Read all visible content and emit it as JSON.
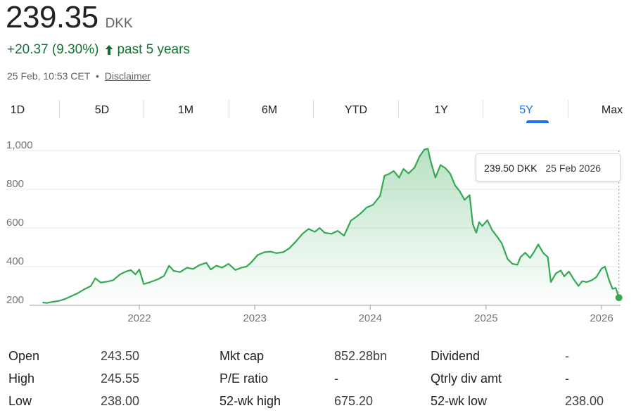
{
  "quote": {
    "price": "239.35",
    "currency": "DKK",
    "change": "+20.37 (9.30%)",
    "change_period": "past 5 years",
    "timestamp": "25 Feb, 10:53 CET",
    "separator": "•",
    "disclaimer": "Disclaimer",
    "change_color": "#137333",
    "line_color": "#34a853"
  },
  "tabs": [
    {
      "label": "1D",
      "active": false
    },
    {
      "label": "5D",
      "active": false
    },
    {
      "label": "1M",
      "active": false
    },
    {
      "label": "6M",
      "active": false
    },
    {
      "label": "YTD",
      "active": false
    },
    {
      "label": "1Y",
      "active": false
    },
    {
      "label": "5Y",
      "active": true
    },
    {
      "label": "Max",
      "active": false
    }
  ],
  "tooltip": {
    "price": "239.50 DKK",
    "date": "25 Feb 2026"
  },
  "chart_data": {
    "type": "area",
    "x_ticks": [
      "2022",
      "2023",
      "2024",
      "2025",
      "2026"
    ],
    "y_ticks": [
      "1,000",
      "800",
      "600",
      "400",
      "200"
    ],
    "ylim": [
      200,
      1000
    ],
    "grid": true,
    "series": [
      {
        "values": [
          [
            "2021-03-01",
            215
          ],
          [
            "2021-03-15",
            212
          ],
          [
            "2021-04-01",
            218
          ],
          [
            "2021-04-20",
            222
          ],
          [
            "2021-05-10",
            232
          ],
          [
            "2021-06-01",
            248
          ],
          [
            "2021-06-20",
            262
          ],
          [
            "2021-07-10",
            282
          ],
          [
            "2021-08-01",
            300
          ],
          [
            "2021-08-15",
            340
          ],
          [
            "2021-09-01",
            318
          ],
          [
            "2021-09-20",
            322
          ],
          [
            "2021-10-10",
            330
          ],
          [
            "2021-11-01",
            360
          ],
          [
            "2021-11-20",
            375
          ],
          [
            "2021-12-05",
            382
          ],
          [
            "2021-12-20",
            360
          ],
          [
            "2022-01-01",
            385
          ],
          [
            "2022-01-15",
            310
          ],
          [
            "2022-02-01",
            318
          ],
          [
            "2022-03-01",
            335
          ],
          [
            "2022-03-20",
            352
          ],
          [
            "2022-04-05",
            405
          ],
          [
            "2022-04-20",
            378
          ],
          [
            "2022-05-10",
            372
          ],
          [
            "2022-06-01",
            395
          ],
          [
            "2022-06-20",
            388
          ],
          [
            "2022-07-10",
            408
          ],
          [
            "2022-08-01",
            420
          ],
          [
            "2022-08-15",
            385
          ],
          [
            "2022-09-01",
            405
          ],
          [
            "2022-09-20",
            395
          ],
          [
            "2022-10-10",
            415
          ],
          [
            "2022-11-01",
            382
          ],
          [
            "2022-11-20",
            395
          ],
          [
            "2022-12-05",
            400
          ],
          [
            "2022-12-20",
            420
          ],
          [
            "2023-01-10",
            460
          ],
          [
            "2023-02-01",
            475
          ],
          [
            "2023-02-20",
            478
          ],
          [
            "2023-03-10",
            470
          ],
          [
            "2023-04-01",
            475
          ],
          [
            "2023-04-20",
            495
          ],
          [
            "2023-05-10",
            528
          ],
          [
            "2023-06-01",
            570
          ],
          [
            "2023-06-20",
            595
          ],
          [
            "2023-07-10",
            580
          ],
          [
            "2023-07-25",
            600
          ],
          [
            "2023-08-10",
            575
          ],
          [
            "2023-09-01",
            570
          ],
          [
            "2023-09-20",
            585
          ],
          [
            "2023-10-10",
            560
          ],
          [
            "2023-11-01",
            638
          ],
          [
            "2023-11-20",
            660
          ],
          [
            "2023-12-05",
            680
          ],
          [
            "2023-12-20",
            705
          ],
          [
            "2024-01-10",
            720
          ],
          [
            "2024-02-01",
            765
          ],
          [
            "2024-02-15",
            870
          ],
          [
            "2024-03-01",
            880
          ],
          [
            "2024-03-15",
            895
          ],
          [
            "2024-04-01",
            860
          ],
          [
            "2024-04-15",
            905
          ],
          [
            "2024-05-01",
            882
          ],
          [
            "2024-05-20",
            912
          ],
          [
            "2024-06-05",
            970
          ],
          [
            "2024-06-20",
            1005
          ],
          [
            "2024-07-01",
            1010
          ],
          [
            "2024-07-10",
            945
          ],
          [
            "2024-07-25",
            860
          ],
          [
            "2024-08-10",
            925
          ],
          [
            "2024-08-25",
            910
          ],
          [
            "2024-09-10",
            880
          ],
          [
            "2024-09-25",
            820
          ],
          [
            "2024-10-10",
            790
          ],
          [
            "2024-10-25",
            745
          ],
          [
            "2024-11-10",
            770
          ],
          [
            "2024-11-20",
            620
          ],
          [
            "2024-12-01",
            575
          ],
          [
            "2024-12-10",
            630
          ],
          [
            "2024-12-20",
            610
          ],
          [
            "2025-01-05",
            640
          ],
          [
            "2025-01-20",
            590
          ],
          [
            "2025-02-05",
            555
          ],
          [
            "2025-02-20",
            520
          ],
          [
            "2025-03-10",
            440
          ],
          [
            "2025-03-25",
            415
          ],
          [
            "2025-04-10",
            410
          ],
          [
            "2025-04-20",
            450
          ],
          [
            "2025-05-05",
            472
          ],
          [
            "2025-05-20",
            445
          ],
          [
            "2025-06-01",
            475
          ],
          [
            "2025-06-15",
            515
          ],
          [
            "2025-07-01",
            470
          ],
          [
            "2025-07-15",
            450
          ],
          [
            "2025-07-25",
            320
          ],
          [
            "2025-08-10",
            365
          ],
          [
            "2025-08-25",
            380
          ],
          [
            "2025-09-05",
            350
          ],
          [
            "2025-09-20",
            375
          ],
          [
            "2025-10-05",
            335
          ],
          [
            "2025-10-20",
            300
          ],
          [
            "2025-11-01",
            325
          ],
          [
            "2025-11-15",
            320
          ],
          [
            "2025-12-01",
            330
          ],
          [
            "2025-12-15",
            345
          ],
          [
            "2026-01-01",
            390
          ],
          [
            "2026-01-12",
            400
          ],
          [
            "2026-01-25",
            330
          ],
          [
            "2026-02-05",
            285
          ],
          [
            "2026-02-15",
            290
          ],
          [
            "2026-02-25",
            239.5
          ]
        ]
      }
    ]
  },
  "stats": [
    [
      {
        "label": "Open",
        "value": "243.50"
      },
      {
        "label": "High",
        "value": "245.55"
      },
      {
        "label": "Low",
        "value": "238.00"
      }
    ],
    [
      {
        "label": "Mkt cap",
        "value": "852.28bn"
      },
      {
        "label": "P/E ratio",
        "value": "-"
      },
      {
        "label": "52-wk high",
        "value": "675.20"
      }
    ],
    [
      {
        "label": "Dividend",
        "value": "-"
      },
      {
        "label": "Qtrly div amt",
        "value": "-"
      },
      {
        "label": "52-wk low",
        "value": "238.00"
      }
    ]
  ]
}
